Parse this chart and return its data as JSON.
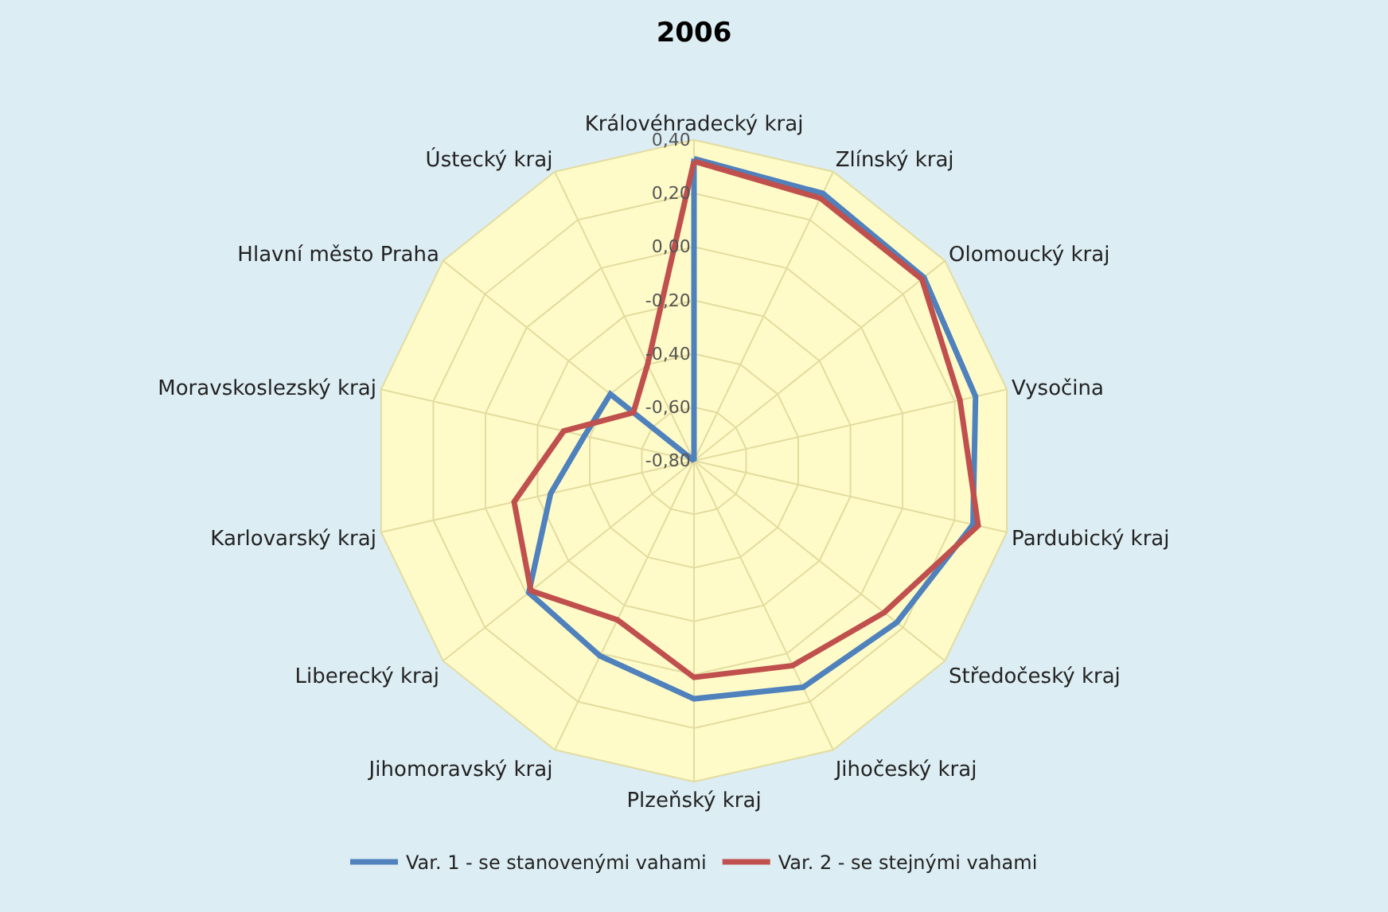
{
  "chart_data": {
    "type": "radar",
    "title": "2006",
    "categories": [
      "Královéhradecký kraj",
      "Zlínský kraj",
      "Olomoucký kraj",
      "Vysočina",
      "Pardubický kraj",
      "Středočeský kraj",
      "Jihočeský kraj",
      "Plzeňský kraj",
      "Jihomoravský kraj",
      "Liberecký kraj",
      "Karlovarský kraj",
      "Moravskoslezský kraj",
      "Hlavní město Praha",
      "Ústecký kraj"
    ],
    "series": [
      {
        "name": "Var. 1 - se stanovenými vahami",
        "color": "#4f81bd",
        "values": [
          0.33,
          0.31,
          0.3,
          0.28,
          0.27,
          0.17,
          0.14,
          0.09,
          0.01,
          -0.01,
          -0.25,
          -0.38,
          -0.4,
          -0.8
        ]
      },
      {
        "name": "Var. 2 - se stejnými vahami",
        "color": "#c0504d",
        "values": [
          0.32,
          0.29,
          0.29,
          0.22,
          0.29,
          0.11,
          0.05,
          0.01,
          -0.14,
          -0.02,
          -0.11,
          -0.3,
          -0.51,
          -0.4
        ]
      }
    ],
    "ylim": [
      -0.8,
      0.4
    ],
    "yticks": [
      {
        "value": 0.4,
        "label": "0,40"
      },
      {
        "value": 0.2,
        "label": "0,20"
      },
      {
        "value": 0.0,
        "label": "0,00"
      },
      {
        "value": -0.2,
        "label": "-0,20"
      },
      {
        "value": -0.4,
        "label": "-0,40"
      },
      {
        "value": -0.6,
        "label": "-0,60"
      },
      {
        "value": -0.8,
        "label": "-0,80"
      }
    ],
    "grid": true,
    "legend": "bottom",
    "marker": "none",
    "line_style": "solid"
  }
}
